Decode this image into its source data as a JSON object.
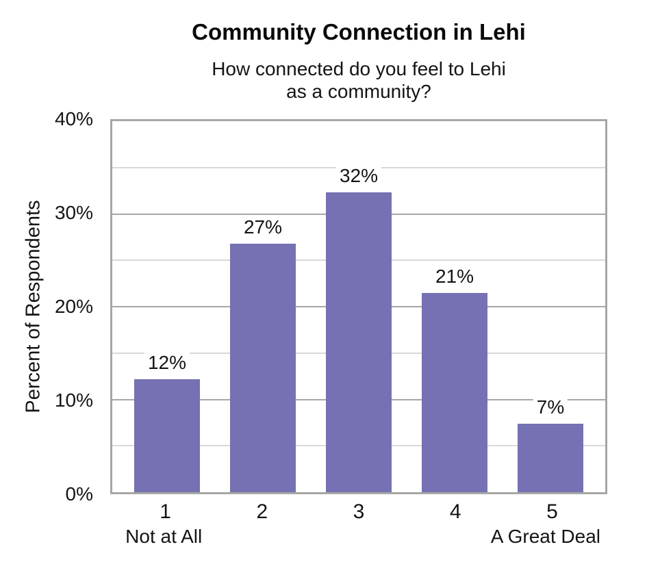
{
  "background": "#FFFFFF",
  "title": "Community Connection in Lehi",
  "subtitle_lines": [
    "How connected do you feel to Lehi",
    "as a community?"
  ],
  "chart_data": {
    "type": "bar",
    "title": "Community Connection in Lehi",
    "subtitle": "How connected do you feel to Lehi as a community?",
    "categories": [
      "1",
      "2",
      "3",
      "4",
      "5"
    ],
    "category_sublabels": [
      "Not at All",
      "",
      "",
      "",
      "A Great Deal"
    ],
    "values": [
      12,
      27,
      32,
      21,
      7
    ],
    "value_labels": [
      "12%",
      "27%",
      "32%",
      "21%",
      "7%"
    ],
    "precise_heights_pct": [
      12.2,
      26.8,
      32.3,
      21.5,
      7.4
    ],
    "xlabel": "",
    "ylabel": "Percent of Respondents",
    "ylim": [
      0,
      40
    ],
    "y_ticks": [
      {
        "value": 0,
        "label": "0%"
      },
      {
        "value": 10,
        "label": "10%"
      },
      {
        "value": 20,
        "label": "20%"
      },
      {
        "value": 30,
        "label": "30%"
      },
      {
        "value": 40,
        "label": "40%"
      }
    ],
    "y_minor_step": 5,
    "y_major_step": 10,
    "grid": true,
    "legend": "none",
    "bar_color": "#7571B3",
    "frame_color": "#A6A6A6",
    "major_grid_color": "#A6A6A6",
    "minor_grid_color": "#D9D9D9",
    "text_color": "#141414"
  }
}
